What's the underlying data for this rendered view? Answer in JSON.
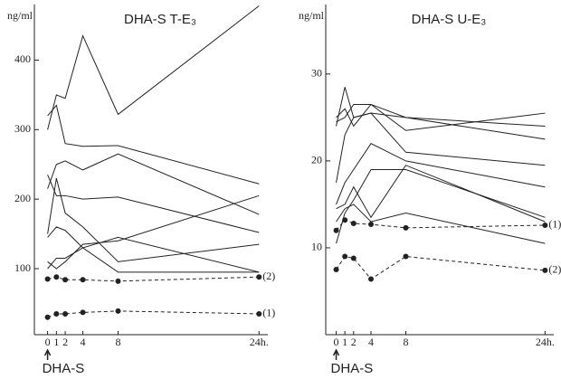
{
  "chart_data": [
    {
      "type": "line",
      "title": "DHA-S T-E₃",
      "ylabel": "ng/ml",
      "annotation": "DHA-S",
      "x": [
        0,
        1,
        2,
        4,
        8,
        24
      ],
      "xlim": [
        -1.5,
        25
      ],
      "xticks": [
        0,
        1,
        2,
        4,
        8,
        {
          "value": 24,
          "label": "24h."
        }
      ],
      "ylim": [
        5,
        480
      ],
      "yticks": [
        100,
        200,
        300,
        400
      ],
      "series": [
        {
          "color": "#222",
          "values": [
            300,
            350,
            345,
            435,
            322,
            478
          ]
        },
        {
          "color": "#222",
          "values": [
            320,
            335,
            280,
            276,
            277,
            222
          ]
        },
        {
          "color": "#222",
          "values": [
            215,
            250,
            255,
            242,
            265,
            178
          ]
        },
        {
          "color": "#222",
          "values": [
            235,
            205,
            205,
            200,
            203,
            152
          ]
        },
        {
          "color": "#222",
          "values": [
            150,
            230,
            180,
            160,
            110,
            135
          ]
        },
        {
          "color": "#222",
          "values": [
            145,
            160,
            155,
            130,
            145,
            95
          ]
        },
        {
          "color": "#222",
          "values": [
            100,
            115,
            115,
            130,
            95,
            95
          ]
        },
        {
          "color": "#222",
          "values": [
            110,
            100,
            110,
            135,
            140,
            205
          ]
        },
        {
          "name": "(2)",
          "color": "#222",
          "dashed": true,
          "markers": true,
          "values": [
            85,
            88,
            84,
            84,
            82,
            88
          ]
        },
        {
          "name": "(1)",
          "color": "#222",
          "dashed": true,
          "markers": true,
          "values": [
            30,
            35,
            35,
            37,
            39,
            35
          ]
        }
      ]
    },
    {
      "type": "line",
      "title": "DHA-S U-E₃",
      "ylabel": "ng/ml",
      "annotation": "DHA-S",
      "x": [
        0,
        1,
        2,
        4,
        8,
        24
      ],
      "xlim": [
        -1.2,
        25
      ],
      "xticks": [
        0,
        1,
        2,
        4,
        8,
        {
          "value": 24,
          "label": "24h."
        }
      ],
      "ylim": [
        0,
        38
      ],
      "yticks": [
        10,
        20,
        30
      ],
      "series": [
        {
          "color": "#222",
          "values": [
            24,
            28.5,
            25,
            25.5,
            25,
            24
          ]
        },
        {
          "color": "#222",
          "values": [
            25,
            26,
            24,
            26.5,
            25,
            22.5
          ]
        },
        {
          "color": "#222",
          "values": [
            24.5,
            25,
            26.5,
            26.5,
            23.5,
            25.5
          ]
        },
        {
          "color": "#222",
          "values": [
            17.5,
            23,
            25,
            25.5,
            21,
            19.5
          ]
        },
        {
          "color": "#222",
          "values": [
            15,
            17.5,
            19,
            22,
            20,
            17
          ]
        },
        {
          "color": "#222",
          "values": [
            14.5,
            15,
            17,
            13.5,
            19.5,
            13
          ]
        },
        {
          "color": "#222",
          "values": [
            10.5,
            14,
            15.5,
            19,
            19,
            13.5
          ]
        },
        {
          "color": "#222",
          "values": [
            13,
            14.5,
            15,
            13,
            14,
            10.5
          ]
        },
        {
          "name": "(1)",
          "color": "#222",
          "dashed": true,
          "markers": true,
          "values": [
            12,
            13.2,
            12.8,
            12.7,
            12.3,
            12.6
          ]
        },
        {
          "name": "(2)",
          "color": "#222",
          "dashed": true,
          "markers": true,
          "values": [
            7.5,
            9,
            8.8,
            6.4,
            9,
            7.4
          ]
        }
      ]
    }
  ]
}
